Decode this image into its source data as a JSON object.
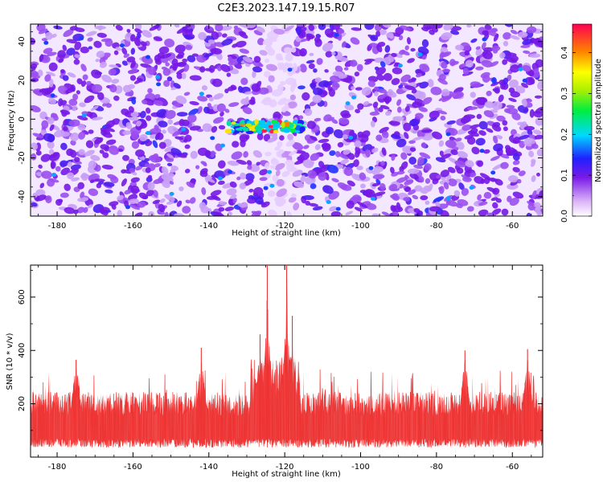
{
  "title": "C2E3.2023.147.19.15.R07",
  "chart_data": [
    {
      "type": "heatmap",
      "xlabel": "Height of straight line (km)",
      "ylabel": "Frequency (Hz)",
      "xlim": [
        -187,
        -52
      ],
      "ylim": [
        -50,
        49
      ],
      "xticks": [
        -180,
        -160,
        -140,
        -120,
        -100,
        -80,
        -60
      ],
      "yticks": [
        -40,
        -20,
        0,
        20,
        40
      ],
      "hotspot": {
        "x_range": [
          -135,
          -115
        ],
        "y_center": -4
      },
      "colorbar": {
        "label": "Normalized spectral amplitude",
        "range": [
          0.0,
          0.47
        ],
        "ticks": [
          0.0,
          0.1,
          0.2,
          0.3,
          0.4
        ]
      }
    },
    {
      "type": "line",
      "xlabel": "Height of straight line (km)",
      "ylabel": "SNR (10 * v/v)",
      "xlim": [
        -187,
        -52
      ],
      "ylim": [
        0,
        720
      ],
      "xticks": [
        -180,
        -160,
        -140,
        -120,
        -100,
        -80,
        -60
      ],
      "yticks": [
        200,
        400,
        600
      ],
      "color": "#ee3333",
      "baseline": {
        "mean": 110,
        "spread": 90,
        "max_typical": 330
      },
      "peaks": [
        {
          "x": -124.6,
          "y": 720
        },
        {
          "x": -119.5,
          "y": 720
        },
        {
          "x": -118,
          "y": 530
        },
        {
          "x": -126.5,
          "y": 460
        },
        {
          "x": -56,
          "y": 405
        },
        {
          "x": -142,
          "y": 410
        },
        {
          "x": -72.5,
          "y": 400
        },
        {
          "x": -175,
          "y": 365
        }
      ]
    }
  ]
}
